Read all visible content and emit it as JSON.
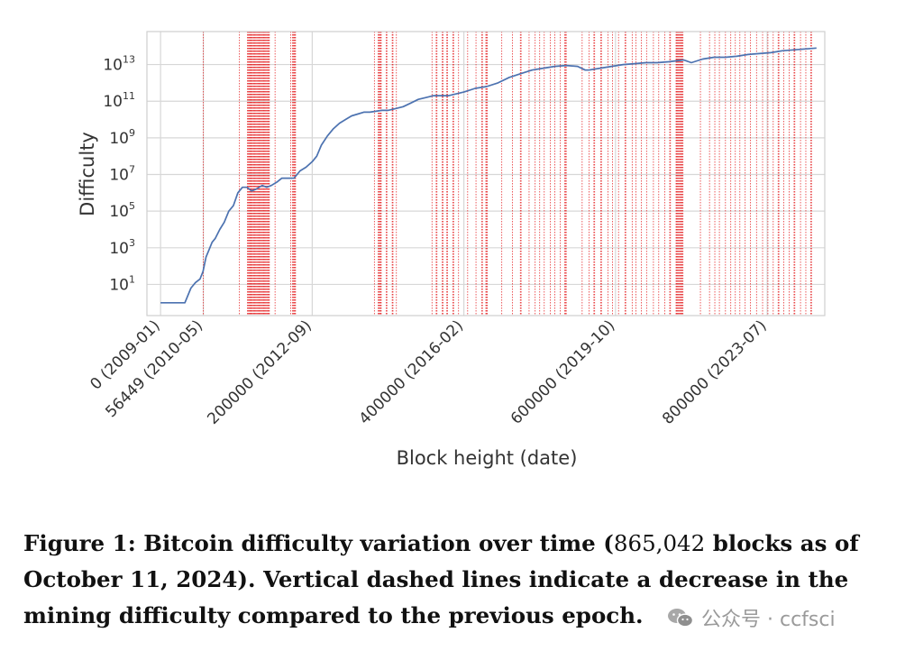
{
  "chart_data": {
    "type": "line",
    "title": "",
    "xlabel": "Block height (date)",
    "ylabel": "Difficulty",
    "yscale": "log",
    "ylim_exp": [
      -0.7,
      14.8
    ],
    "xlim": [
      -18000,
      876000
    ],
    "grid": true,
    "y_ticks": [
      {
        "base": "10",
        "exp": "1",
        "value_exp": 1
      },
      {
        "base": "10",
        "exp": "3",
        "value_exp": 3
      },
      {
        "base": "10",
        "exp": "5",
        "value_exp": 5
      },
      {
        "base": "10",
        "exp": "7",
        "value_exp": 7
      },
      {
        "base": "10",
        "exp": "9",
        "value_exp": 9
      },
      {
        "base": "10",
        "exp": "11",
        "value_exp": 11
      },
      {
        "base": "10",
        "exp": "13",
        "value_exp": 13
      }
    ],
    "x_ticks": [
      {
        "value": 0,
        "label": "0 (2009-01)"
      },
      {
        "value": 56449,
        "label": "56449 (2010-05)"
      },
      {
        "value": 200000,
        "label": "200000 (2012-09)"
      },
      {
        "value": 400000,
        "label": "400000 (2016-02)"
      },
      {
        "value": 600000,
        "label": "600000 (2019-10)"
      },
      {
        "value": 800000,
        "label": "800000 (2023-07)"
      }
    ],
    "series": [
      {
        "name": "Difficulty",
        "color": "#4c72b0",
        "x": [
          0,
          32000,
          40000,
          46000,
          52000,
          56000,
          60000,
          64000,
          68000,
          72000,
          78000,
          84000,
          90000,
          96000,
          102000,
          108000,
          114000,
          120000,
          126000,
          130000,
          134000,
          140000,
          146000,
          154000,
          160000,
          168000,
          176000,
          184000,
          192000,
          200000,
          206000,
          212000,
          220000,
          228000,
          236000,
          244000,
          252000,
          260000,
          268000,
          276000,
          284000,
          292000,
          300000,
          310000,
          320000,
          330000,
          340000,
          350000,
          360000,
          370000,
          380000,
          390000,
          400000,
          415000,
          430000,
          445000,
          460000,
          475000,
          490000,
          505000,
          520000,
          535000,
          550000,
          560000,
          565000,
          580000,
          595000,
          610000,
          625000,
          640000,
          655000,
          670000,
          680000,
          690000,
          700000,
          715000,
          730000,
          745000,
          760000,
          775000,
          790000,
          805000,
          820000,
          835000,
          850000,
          865042
        ],
        "y_exp": [
          0,
          0,
          0.8,
          1.1,
          1.3,
          1.7,
          2.5,
          2.9,
          3.3,
          3.5,
          4.0,
          4.4,
          5.0,
          5.3,
          6.0,
          6.3,
          6.3,
          6.1,
          6.2,
          6.3,
          6.4,
          6.3,
          6.4,
          6.6,
          6.8,
          6.8,
          6.8,
          7.2,
          7.4,
          7.7,
          8.0,
          8.6,
          9.1,
          9.5,
          9.8,
          10.0,
          10.2,
          10.3,
          10.4,
          10.4,
          10.45,
          10.5,
          10.5,
          10.6,
          10.7,
          10.9,
          11.1,
          11.2,
          11.3,
          11.3,
          11.3,
          11.4,
          11.5,
          11.7,
          11.8,
          12.0,
          12.3,
          12.5,
          12.7,
          12.8,
          12.9,
          12.95,
          12.9,
          12.7,
          12.7,
          12.8,
          12.9,
          13.0,
          13.05,
          13.1,
          13.1,
          13.15,
          13.2,
          13.25,
          13.1,
          13.3,
          13.4,
          13.4,
          13.45,
          13.55,
          13.6,
          13.65,
          13.75,
          13.8,
          13.85,
          13.9
        ]
      }
    ],
    "decrease_lines": [
      {
        "center": 56449,
        "count": 1
      },
      {
        "center": 104000,
        "count": 1
      },
      {
        "center": 119000,
        "count": 1
      },
      {
        "center": 128000,
        "count": 28
      },
      {
        "center": 143000,
        "count": 2
      },
      {
        "center": 151000,
        "count": 1
      },
      {
        "center": 171500,
        "count": 1
      },
      {
        "center": 176000,
        "count": 5
      },
      {
        "center": 282000,
        "count": 1
      },
      {
        "center": 289000,
        "count": 5
      },
      {
        "center": 298000,
        "count": 2
      },
      {
        "center": 306000,
        "count": 2
      },
      {
        "center": 311000,
        "count": 1
      },
      {
        "center": 358000,
        "count": 1
      },
      {
        "center": 364000,
        "count": 2
      },
      {
        "center": 372000,
        "count": 2
      },
      {
        "center": 378000,
        "count": 2
      },
      {
        "center": 386000,
        "count": 2
      },
      {
        "center": 393000,
        "count": 1
      },
      {
        "center": 405000,
        "count": 1
      },
      {
        "center": 416000,
        "count": 1
      },
      {
        "center": 424000,
        "count": 2
      },
      {
        "center": 430000,
        "count": 3
      },
      {
        "center": 450000,
        "count": 1
      },
      {
        "center": 464000,
        "count": 1
      },
      {
        "center": 475000,
        "count": 2
      },
      {
        "center": 486000,
        "count": 1
      },
      {
        "center": 494000,
        "count": 1
      },
      {
        "center": 500000,
        "count": 1
      },
      {
        "center": 506000,
        "count": 1
      },
      {
        "center": 514000,
        "count": 1
      },
      {
        "center": 520000,
        "count": 1
      },
      {
        "center": 527000,
        "count": 1
      },
      {
        "center": 534000,
        "count": 3
      },
      {
        "center": 556000,
        "count": 1
      },
      {
        "center": 565000,
        "count": 1
      },
      {
        "center": 572000,
        "count": 2
      },
      {
        "center": 581000,
        "count": 2
      },
      {
        "center": 590000,
        "count": 1
      },
      {
        "center": 596000,
        "count": 1
      },
      {
        "center": 604000,
        "count": 1
      },
      {
        "center": 613000,
        "count": 2
      },
      {
        "center": 622000,
        "count": 1
      },
      {
        "center": 627000,
        "count": 1
      },
      {
        "center": 634000,
        "count": 1
      },
      {
        "center": 641000,
        "count": 1
      },
      {
        "center": 650000,
        "count": 1
      },
      {
        "center": 657000,
        "count": 1
      },
      {
        "center": 665000,
        "count": 1
      },
      {
        "center": 672000,
        "count": 2
      },
      {
        "center": 680000,
        "count": 1
      },
      {
        "center": 684500,
        "count": 10
      },
      {
        "center": 712000,
        "count": 1
      },
      {
        "center": 724000,
        "count": 1
      },
      {
        "center": 731000,
        "count": 1
      },
      {
        "center": 737000,
        "count": 1
      },
      {
        "center": 745000,
        "count": 1
      },
      {
        "center": 752000,
        "count": 1
      },
      {
        "center": 758000,
        "count": 1
      },
      {
        "center": 764000,
        "count": 1
      },
      {
        "center": 771000,
        "count": 1
      },
      {
        "center": 778000,
        "count": 1
      },
      {
        "center": 786000,
        "count": 1
      },
      {
        "center": 794000,
        "count": 1
      },
      {
        "center": 801000,
        "count": 1
      },
      {
        "center": 808000,
        "count": 1
      },
      {
        "center": 815000,
        "count": 2
      },
      {
        "center": 822000,
        "count": 1
      },
      {
        "center": 829000,
        "count": 1
      },
      {
        "center": 836000,
        "count": 2
      },
      {
        "center": 844000,
        "count": 1
      },
      {
        "center": 851000,
        "count": 1
      },
      {
        "center": 858000,
        "count": 2
      }
    ],
    "line_color": "#4c72b0",
    "decrease_color": "#e41a1c",
    "grid_color": "#d7d7d7"
  },
  "caption": {
    "label": "Figure 1:",
    "text_a": "Bitcoin difficulty variation over time (",
    "count": "865,042",
    "text_b": "blocks as of October 11, 2024). Vertical dashed lines indicate a decrease in the mining difficulty compared to the previous epoch."
  },
  "watermark": {
    "icon": "wechat-icon",
    "text": "公众号 · ccfsci"
  }
}
